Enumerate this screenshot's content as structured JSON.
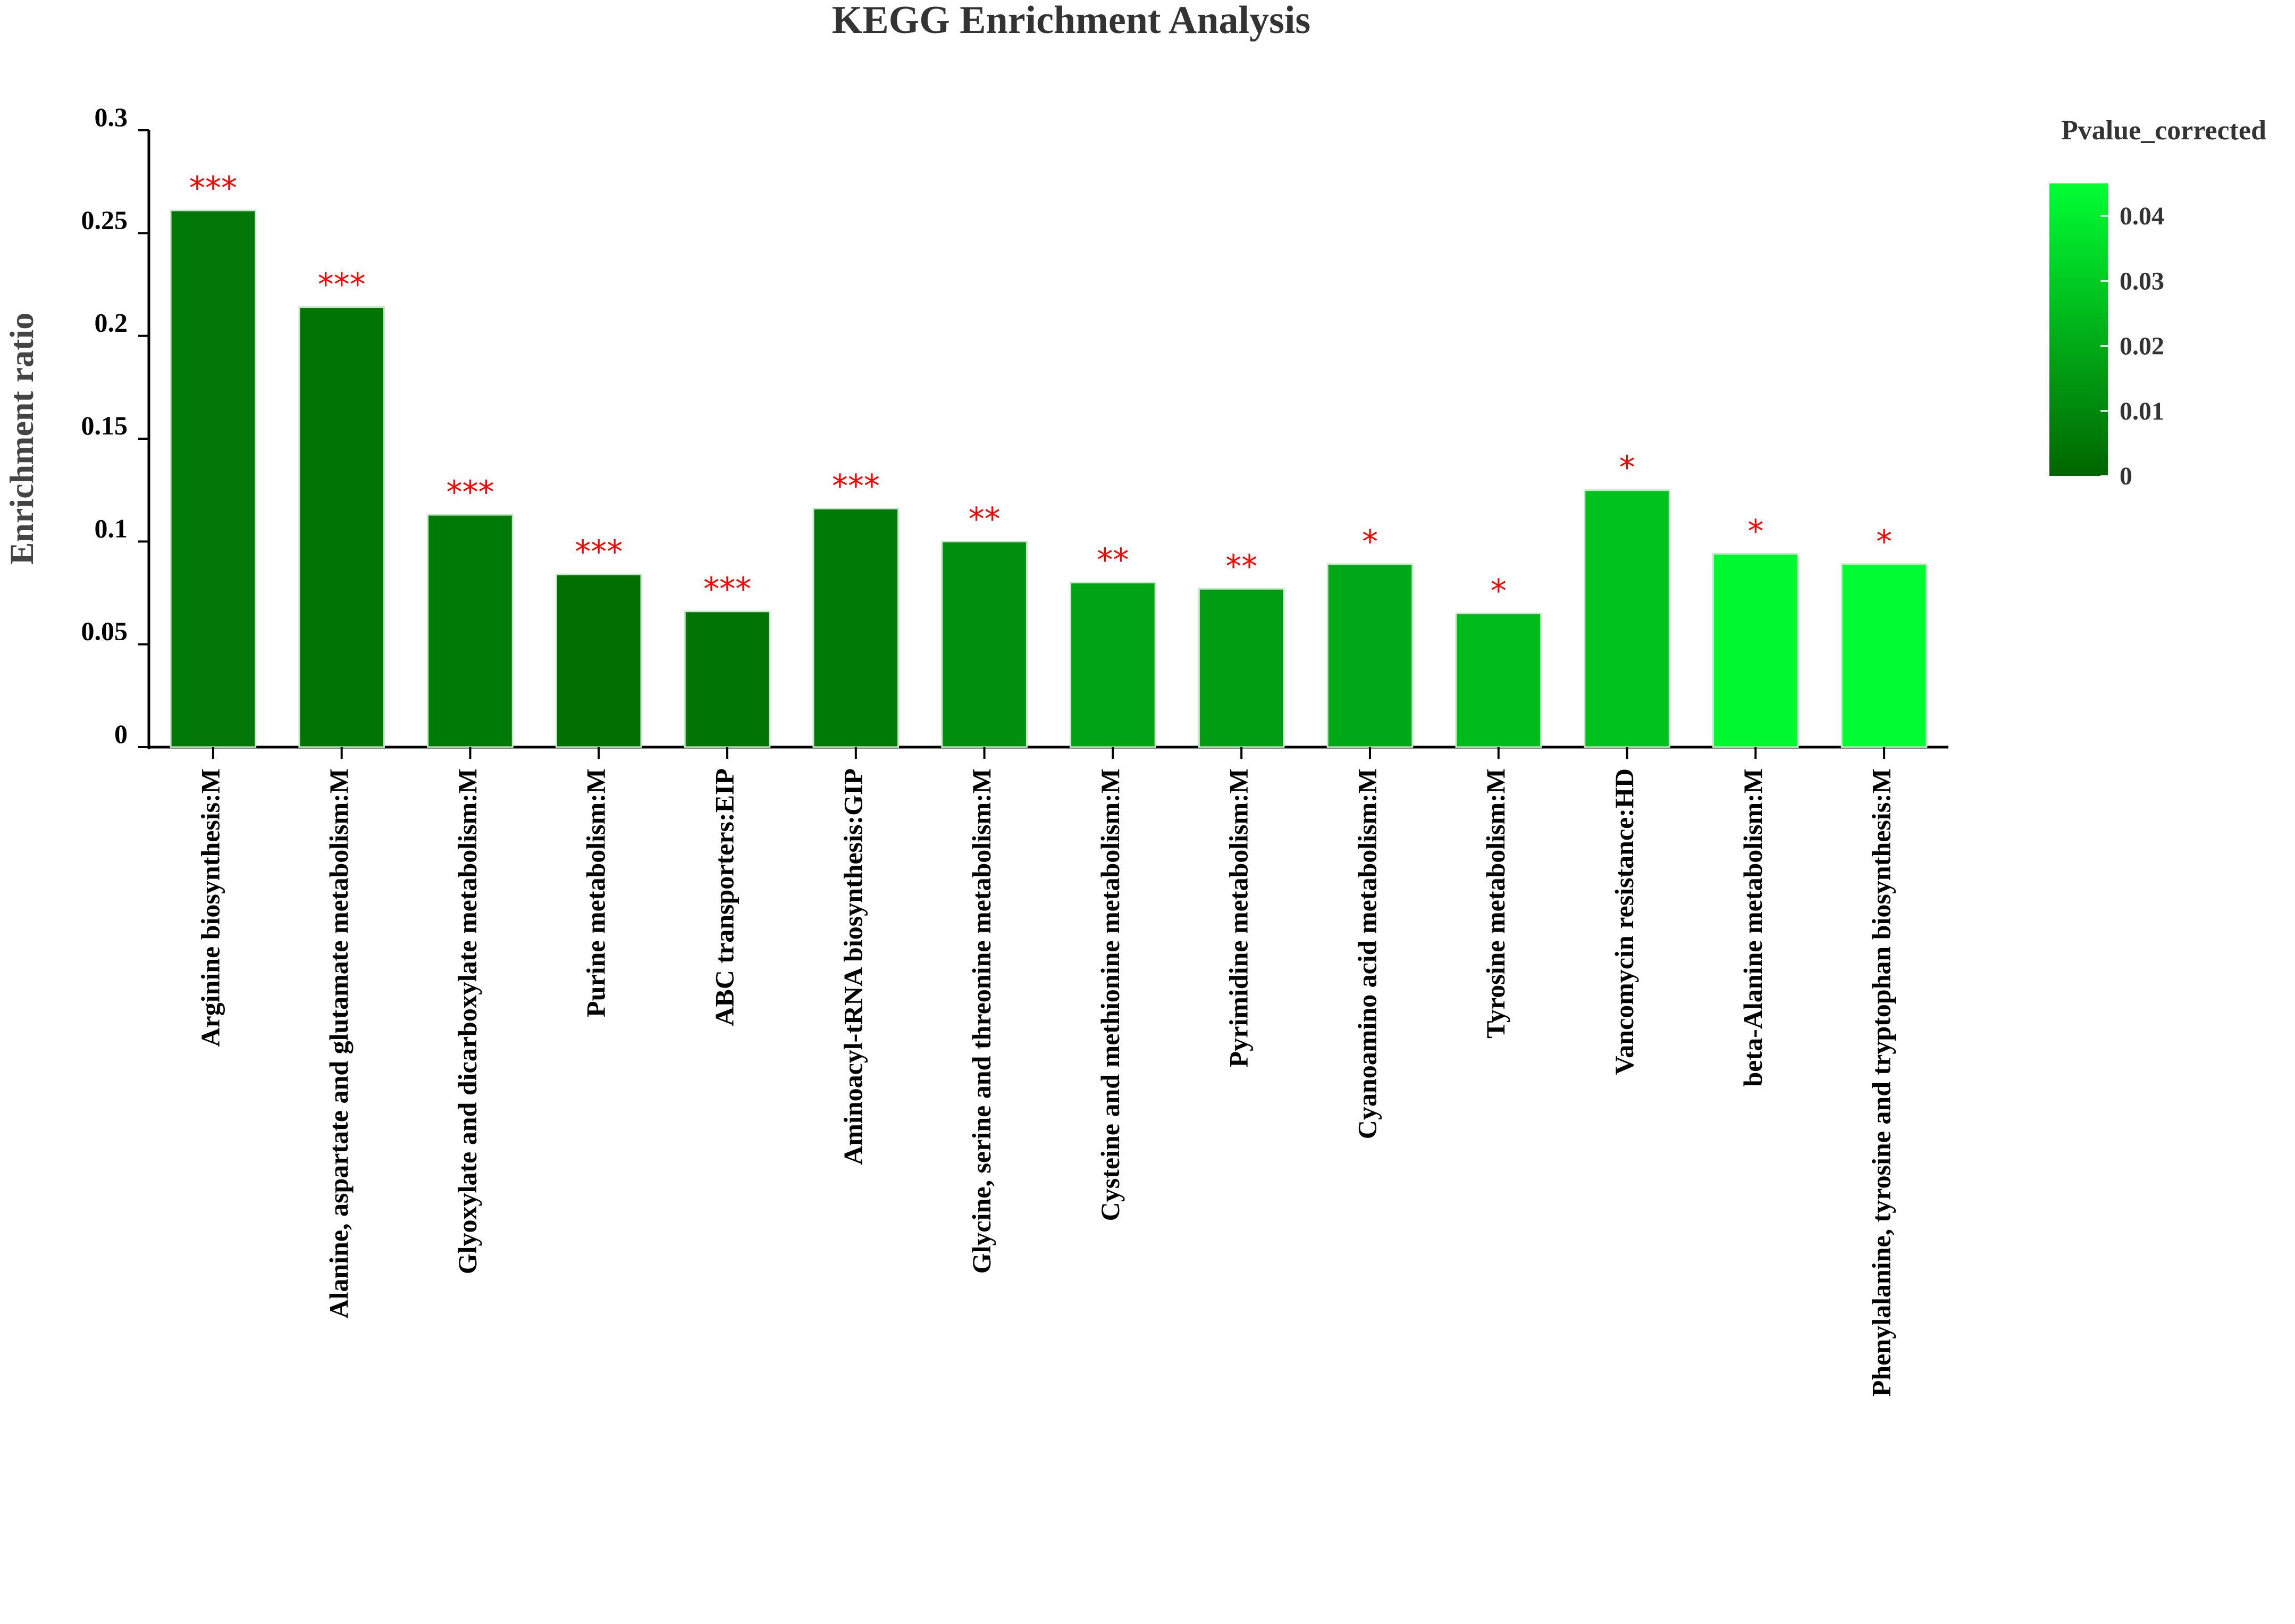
{
  "chart_data": {
    "type": "bar",
    "title": "KEGG Enrichment Analysis",
    "ylabel": "Enrichment ratio",
    "xlabel": "",
    "ylim": [
      0,
      0.3
    ],
    "yticks": [
      "0",
      "0.05",
      "0.1",
      "0.15",
      "0.2",
      "0.25",
      "0.3"
    ],
    "grid": false,
    "categories": [
      "Arginine biosynthesis:M",
      "Alanine, aspartate and glutamate metabolism:M",
      "Glyoxylate and dicarboxylate metabolism:M",
      "Purine metabolism:M",
      "ABC transporters:EIP",
      "Aminoacyl-tRNA biosynthesis:GIP",
      "Glycine, serine and threonine metabolism:M",
      "Cysteine and methionine metabolism:M",
      "Pyrimidine metabolism:M",
      "Cyanoamino acid metabolism:M",
      "Tyrosine metabolism:M",
      "Vancomycin resistance:HD",
      "beta-Alanine metabolism:M",
      "Phenylalanine, tyrosine and tryptophan biosynthesis:M"
    ],
    "values": [
      0.261,
      0.214,
      0.113,
      0.084,
      0.066,
      0.116,
      0.1,
      0.08,
      0.077,
      0.089,
      0.065,
      0.125,
      0.094,
      0.089
    ],
    "pvalue_corrected": [
      0.005,
      0.004,
      0.006,
      0.003,
      0.004,
      0.006,
      0.012,
      0.018,
      0.016,
      0.019,
      0.025,
      0.027,
      0.043,
      0.044
    ],
    "significance": [
      "***",
      "***",
      "***",
      "***",
      "***",
      "***",
      "**",
      "**",
      "**",
      "*",
      "*",
      "*",
      "*",
      "*"
    ],
    "color_scale": {
      "title": "Pvalue_corrected",
      "min": 0,
      "max": 0.045,
      "low_color": "#006600",
      "high_color": "#00ff33",
      "ticks": [
        "0",
        "0.01",
        "0.02",
        "0.03",
        "0.04"
      ]
    },
    "legend_position": "top-right",
    "annotation_color": "#ff0000"
  }
}
